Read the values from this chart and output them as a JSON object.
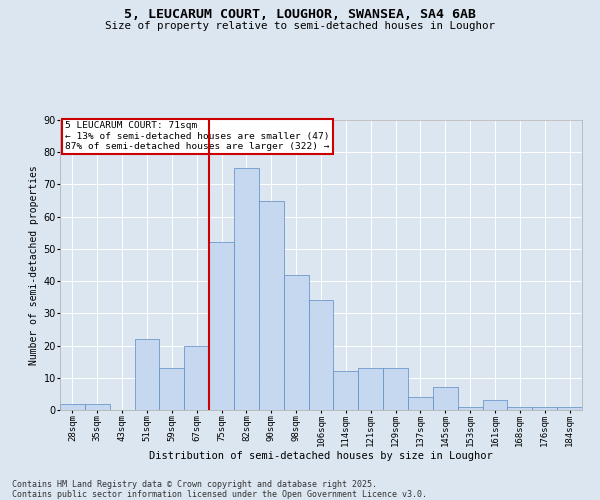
{
  "title_line1": "5, LEUCARUM COURT, LOUGHOR, SWANSEA, SA4 6AB",
  "title_line2": "Size of property relative to semi-detached houses in Loughor",
  "xlabel": "Distribution of semi-detached houses by size in Loughor",
  "ylabel": "Number of semi-detached properties",
  "categories": [
    "28sqm",
    "35sqm",
    "43sqm",
    "51sqm",
    "59sqm",
    "67sqm",
    "75sqm",
    "82sqm",
    "90sqm",
    "98sqm",
    "106sqm",
    "114sqm",
    "121sqm",
    "129sqm",
    "137sqm",
    "145sqm",
    "153sqm",
    "161sqm",
    "168sqm",
    "176sqm",
    "184sqm"
  ],
  "values": [
    2,
    2,
    0,
    22,
    13,
    20,
    52,
    75,
    65,
    42,
    34,
    12,
    13,
    13,
    4,
    7,
    1,
    3,
    1,
    1,
    1
  ],
  "bar_color": "#c5d8ef",
  "bar_edge_color": "#5b8ac5",
  "vline_color": "#cc0000",
  "vline_x_index": 6,
  "annotation_text": "5 LEUCARUM COURT: 71sqm\n← 13% of semi-detached houses are smaller (47)\n87% of semi-detached houses are larger (322) →",
  "annotation_box_color": "#ffffff",
  "annotation_box_edge_color": "#cc0000",
  "ylim": [
    0,
    90
  ],
  "yticks": [
    0,
    10,
    20,
    30,
    40,
    50,
    60,
    70,
    80,
    90
  ],
  "background_color": "#dce6f1",
  "footer": "Contains HM Land Registry data © Crown copyright and database right 2025.\nContains public sector information licensed under the Open Government Licence v3.0."
}
